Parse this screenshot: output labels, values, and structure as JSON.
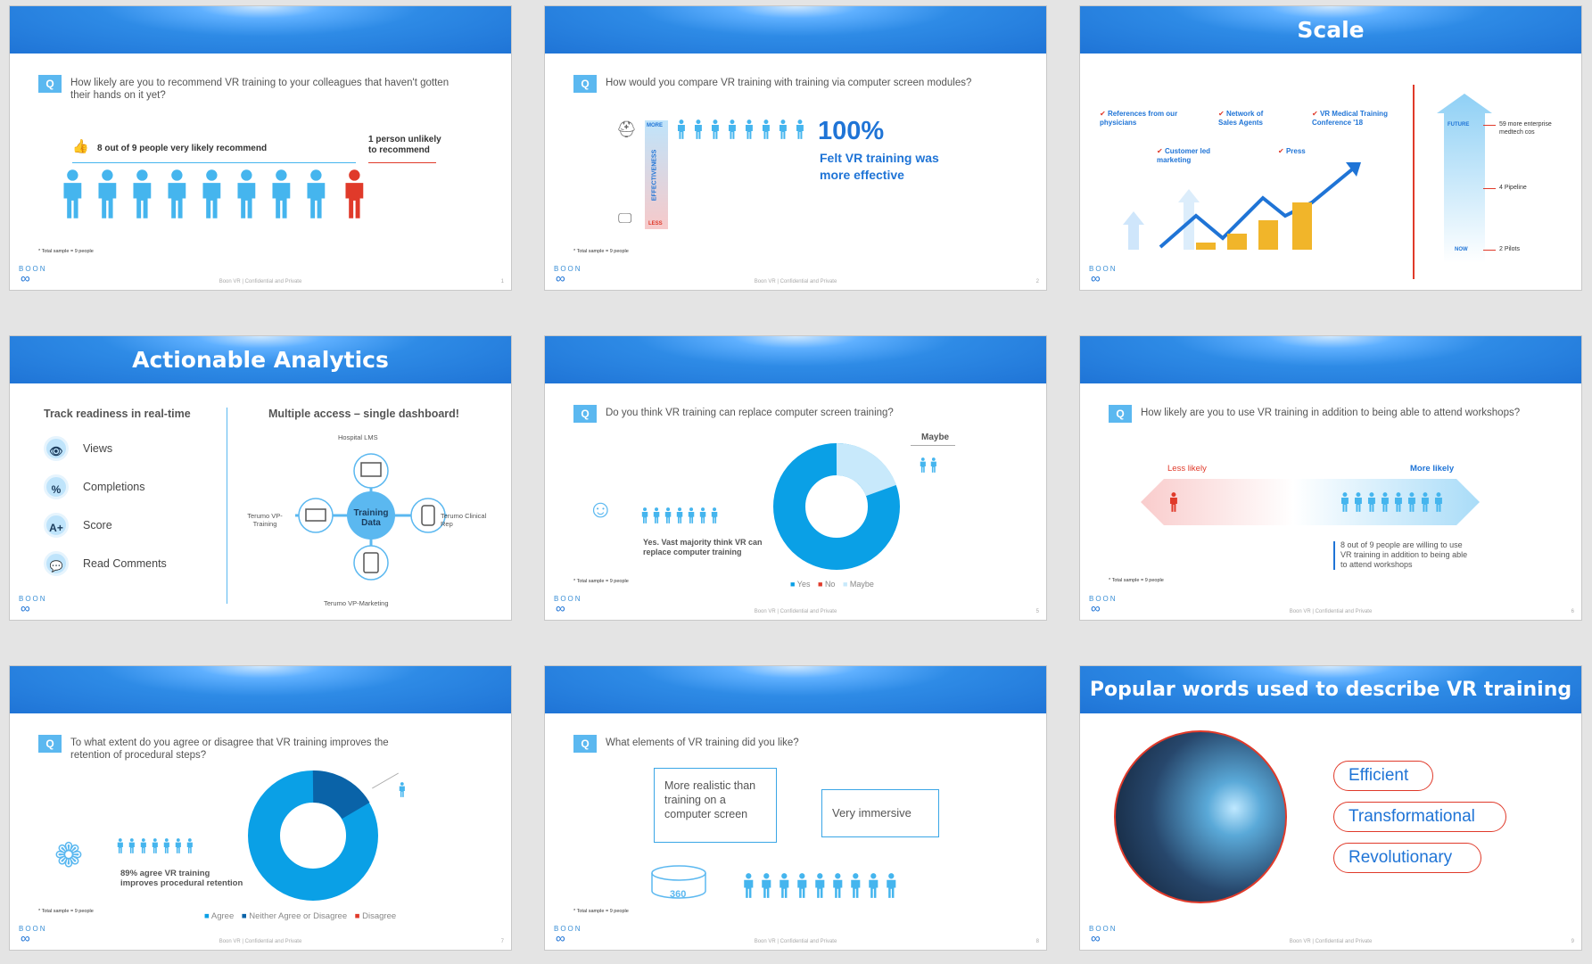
{
  "footer_text": "Boon VR | Confidential and Private",
  "logo_text": "BOON",
  "q_badge": "Q",
  "sample_note": "* Total sample = 9 people",
  "slide1": {
    "page": "1",
    "question": "How likely are you to recommend VR training to your colleagues that haven't gotten their hands on it yet?",
    "likely_label": "8 out of 9 people very likely recommend",
    "unlikely_label": "1 person unlikely to recommend"
  },
  "slide2": {
    "page": "2",
    "question": "How would you compare VR training with training via computer screen modules?",
    "more": "MORE",
    "less": "LESS",
    "axis": "EFFECTIVENESS",
    "big_pct": "100%",
    "caption": "Felt VR training was more effective"
  },
  "slide3": {
    "title": "Scale",
    "items": [
      "References from our physicians",
      "Network of Sales Agents",
      "VR Medical Training Conference '18",
      "Customer led marketing",
      "Press"
    ],
    "future": "FUTURE",
    "now": "NOW",
    "timeline": [
      "59 more enterprise medtech cos",
      "4 Pipeline",
      "2 Pilots"
    ]
  },
  "slide4": {
    "title": "Actionable Analytics",
    "left_heading": "Track readiness in real-time",
    "metrics": [
      "Views",
      "Completions",
      "Score",
      "Read Comments"
    ],
    "metric_icons": [
      "👁",
      "%",
      "A+",
      "💬"
    ],
    "right_heading": "Multiple access – single dashboard!",
    "hub": "Training Data",
    "nodes": [
      "Hospital LMS",
      "Terumo VP-Training",
      "Terumo Clinical Rep",
      "Terumo VP-Marketing"
    ]
  },
  "slide5": {
    "page": "5",
    "question": "Do you think VR training can replace computer screen training?",
    "maybe_label": "Maybe",
    "yes_label": "Yes. Vast majority think VR can replace computer training",
    "legend": [
      "Yes",
      "No",
      "Maybe"
    ]
  },
  "slide6": {
    "page": "6",
    "question": "How likely are you to use VR training in addition to being able to attend workshops?",
    "less": "Less likely",
    "more": "More likely",
    "note": "8 out of 9 people are willing to use VR training in addition to being able to attend workshops"
  },
  "slide7": {
    "page": "7",
    "question": "To what extent do you agree or disagree that VR training improves the retention of procedural steps?",
    "label": "89% agree VR training improves procedural retention",
    "legend": [
      "Agree",
      "Neither Agree or Disagree",
      "Disagree"
    ]
  },
  "slide8": {
    "page": "8",
    "question": "What elements of VR training did you like?",
    "bubble1": "More realistic than training on a computer screen",
    "bubble2": "Very immersive",
    "vr360": "360"
  },
  "slide9": {
    "page": "9",
    "title": "Popular words used to describe VR training",
    "words": [
      "Efficient",
      "Transformational",
      "Revolutionary"
    ]
  },
  "colors": {
    "blue": "#1f74d6",
    "light_blue": "#5bb8f0",
    "person": "#45b5ee",
    "red": "#e03a2a"
  }
}
